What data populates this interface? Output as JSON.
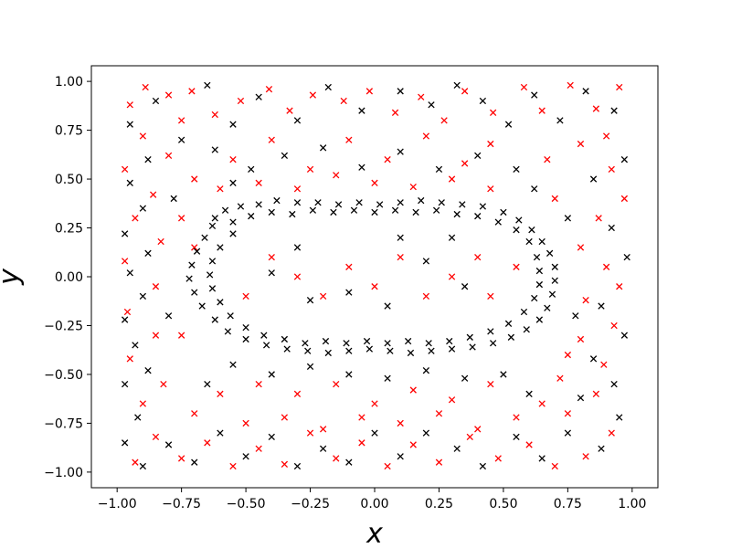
{
  "chart_data": {
    "type": "scatter",
    "title": "",
    "xlabel": "x",
    "ylabel": "y",
    "xlim": [
      -1.1,
      1.1
    ],
    "ylim": [
      -1.08,
      1.08
    ],
    "xticks": [
      -1.0,
      -0.75,
      -0.5,
      -0.25,
      0.0,
      0.25,
      0.5,
      0.75,
      1.0
    ],
    "xtick_labels": [
      "−1.00",
      "−0.75",
      "−0.50",
      "−0.25",
      "0.00",
      "0.25",
      "0.50",
      "0.75",
      "1.00"
    ],
    "yticks": [
      1.0,
      0.75,
      0.5,
      0.25,
      0.0,
      -0.25,
      -0.5,
      -0.75,
      -1.0
    ],
    "ytick_labels": [
      "1.00",
      "0.75",
      "0.50",
      "0.25",
      "0.00",
      "−0.25",
      "−0.50",
      "−0.75",
      "−1.00"
    ],
    "grid": false,
    "marker": "x",
    "series": [
      {
        "color": "#ff0000",
        "points": [
          [
            -0.95,
            0.88
          ],
          [
            -0.89,
            0.97
          ],
          [
            -0.8,
            0.93
          ],
          [
            -0.71,
            0.95
          ],
          [
            -0.62,
            0.83
          ],
          [
            -0.52,
            0.9
          ],
          [
            -0.41,
            0.96
          ],
          [
            -0.33,
            0.85
          ],
          [
            -0.24,
            0.93
          ],
          [
            -0.12,
            0.9
          ],
          [
            -0.02,
            0.95
          ],
          [
            0.08,
            0.84
          ],
          [
            0.18,
            0.92
          ],
          [
            0.27,
            0.8
          ],
          [
            0.35,
            0.95
          ],
          [
            0.46,
            0.84
          ],
          [
            0.58,
            0.97
          ],
          [
            0.65,
            0.85
          ],
          [
            0.76,
            0.98
          ],
          [
            0.86,
            0.86
          ],
          [
            0.95,
            0.97
          ],
          [
            0.9,
            0.72
          ],
          [
            0.8,
            0.68
          ],
          [
            0.67,
            0.6
          ],
          [
            0.92,
            0.55
          ],
          [
            0.97,
            0.4
          ],
          [
            0.87,
            0.3
          ],
          [
            0.8,
            0.15
          ],
          [
            0.9,
            0.05
          ],
          [
            0.95,
            -0.05
          ],
          [
            0.82,
            -0.12
          ],
          [
            0.93,
            -0.25
          ],
          [
            0.8,
            -0.32
          ],
          [
            0.89,
            -0.45
          ],
          [
            0.72,
            -0.52
          ],
          [
            0.86,
            -0.6
          ],
          [
            0.75,
            -0.7
          ],
          [
            0.92,
            -0.8
          ],
          [
            0.82,
            -0.92
          ],
          [
            0.7,
            -0.97
          ],
          [
            0.6,
            -0.86
          ],
          [
            0.48,
            -0.93
          ],
          [
            0.37,
            -0.82
          ],
          [
            0.25,
            -0.95
          ],
          [
            0.15,
            -0.86
          ],
          [
            0.05,
            -0.97
          ],
          [
            -0.05,
            -0.85
          ],
          [
            -0.15,
            -0.93
          ],
          [
            -0.25,
            -0.8
          ],
          [
            -0.35,
            -0.96
          ],
          [
            -0.45,
            -0.88
          ],
          [
            -0.55,
            -0.97
          ],
          [
            -0.65,
            -0.85
          ],
          [
            -0.75,
            -0.93
          ],
          [
            -0.85,
            -0.82
          ],
          [
            -0.93,
            -0.95
          ],
          [
            -0.9,
            -0.65
          ],
          [
            -0.82,
            -0.55
          ],
          [
            -0.95,
            -0.42
          ],
          [
            -0.85,
            -0.3
          ],
          [
            -0.96,
            -0.18
          ],
          [
            -0.85,
            -0.05
          ],
          [
            -0.97,
            0.08
          ],
          [
            -0.83,
            0.18
          ],
          [
            -0.93,
            0.3
          ],
          [
            -0.86,
            0.42
          ],
          [
            -0.97,
            0.55
          ],
          [
            -0.8,
            0.62
          ],
          [
            -0.9,
            0.72
          ],
          [
            -0.75,
            0.8
          ],
          [
            -0.7,
            0.5
          ],
          [
            -0.55,
            0.6
          ],
          [
            -0.4,
            0.7
          ],
          [
            -0.25,
            0.55
          ],
          [
            -0.1,
            0.7
          ],
          [
            0.05,
            0.6
          ],
          [
            0.2,
            0.72
          ],
          [
            0.35,
            0.58
          ],
          [
            0.45,
            0.68
          ],
          [
            -0.6,
            0.45
          ],
          [
            -0.45,
            0.48
          ],
          [
            -0.3,
            0.45
          ],
          [
            -0.15,
            0.52
          ],
          [
            0.0,
            0.48
          ],
          [
            0.15,
            0.46
          ],
          [
            0.3,
            0.5
          ],
          [
            0.45,
            0.45
          ],
          [
            -0.4,
            0.1
          ],
          [
            -0.3,
            0.0
          ],
          [
            -0.2,
            -0.1
          ],
          [
            -0.1,
            0.05
          ],
          [
            0.0,
            -0.05
          ],
          [
            0.1,
            0.1
          ],
          [
            0.2,
            -0.1
          ],
          [
            0.3,
            0.0
          ],
          [
            0.4,
            0.1
          ],
          [
            0.45,
            -0.1
          ],
          [
            -0.5,
            -0.1
          ],
          [
            0.55,
            0.05
          ],
          [
            -0.45,
            -0.55
          ],
          [
            -0.3,
            -0.6
          ],
          [
            -0.15,
            -0.55
          ],
          [
            0.0,
            -0.65
          ],
          [
            0.15,
            -0.58
          ],
          [
            0.3,
            -0.63
          ],
          [
            0.45,
            -0.55
          ],
          [
            -0.6,
            -0.6
          ],
          [
            -0.7,
            -0.7
          ],
          [
            -0.5,
            -0.75
          ],
          [
            -0.35,
            -0.72
          ],
          [
            -0.2,
            -0.78
          ],
          [
            -0.05,
            -0.72
          ],
          [
            0.1,
            -0.75
          ],
          [
            0.25,
            -0.7
          ],
          [
            0.4,
            -0.78
          ],
          [
            0.55,
            -0.72
          ],
          [
            0.65,
            -0.65
          ],
          [
            -0.75,
            -0.3
          ],
          [
            -0.7,
            0.15
          ],
          [
            -0.75,
            0.3
          ],
          [
            0.7,
            0.4
          ],
          [
            0.75,
            -0.4
          ]
        ]
      },
      {
        "color": "#000000",
        "points": [
          [
            -0.62,
            0.3
          ],
          [
            -0.58,
            0.34
          ],
          [
            -0.52,
            0.36
          ],
          [
            -0.45,
            0.37
          ],
          [
            -0.38,
            0.39
          ],
          [
            -0.3,
            0.38
          ],
          [
            -0.22,
            0.38
          ],
          [
            -0.14,
            0.37
          ],
          [
            -0.06,
            0.38
          ],
          [
            0.02,
            0.37
          ],
          [
            0.1,
            0.38
          ],
          [
            0.18,
            0.39
          ],
          [
            0.26,
            0.38
          ],
          [
            0.34,
            0.37
          ],
          [
            0.42,
            0.36
          ],
          [
            0.5,
            0.33
          ],
          [
            0.56,
            0.29
          ],
          [
            0.61,
            0.24
          ],
          [
            0.65,
            0.18
          ],
          [
            0.68,
            0.12
          ],
          [
            0.7,
            0.05
          ],
          [
            0.7,
            -0.02
          ],
          [
            0.69,
            -0.09
          ],
          [
            0.67,
            -0.16
          ],
          [
            0.64,
            -0.22
          ],
          [
            0.59,
            -0.27
          ],
          [
            0.53,
            -0.31
          ],
          [
            0.46,
            -0.34
          ],
          [
            0.38,
            -0.36
          ],
          [
            0.3,
            -0.37
          ],
          [
            0.22,
            -0.38
          ],
          [
            0.14,
            -0.39
          ],
          [
            0.06,
            -0.38
          ],
          [
            -0.02,
            -0.37
          ],
          [
            -0.1,
            -0.38
          ],
          [
            -0.18,
            -0.39
          ],
          [
            -0.26,
            -0.38
          ],
          [
            -0.34,
            -0.37
          ],
          [
            -0.42,
            -0.35
          ],
          [
            -0.5,
            -0.32
          ],
          [
            -0.57,
            -0.28
          ],
          [
            -0.62,
            -0.22
          ],
          [
            -0.67,
            -0.15
          ],
          [
            -0.7,
            -0.08
          ],
          [
            -0.72,
            -0.01
          ],
          [
            -0.71,
            0.06
          ],
          [
            -0.69,
            0.13
          ],
          [
            -0.66,
            0.2
          ],
          [
            -0.63,
            0.26
          ],
          [
            -0.55,
            0.28
          ],
          [
            -0.48,
            0.31
          ],
          [
            -0.4,
            0.33
          ],
          [
            -0.32,
            0.32
          ],
          [
            -0.24,
            0.34
          ],
          [
            -0.16,
            0.33
          ],
          [
            -0.08,
            0.34
          ],
          [
            0.0,
            0.33
          ],
          [
            0.08,
            0.34
          ],
          [
            0.16,
            0.33
          ],
          [
            0.24,
            0.34
          ],
          [
            0.32,
            0.32
          ],
          [
            0.4,
            0.31
          ],
          [
            0.48,
            0.28
          ],
          [
            0.55,
            0.24
          ],
          [
            0.6,
            0.18
          ],
          [
            0.63,
            0.1
          ],
          [
            0.64,
            0.03
          ],
          [
            0.64,
            -0.04
          ],
          [
            0.62,
            -0.11
          ],
          [
            0.58,
            -0.18
          ],
          [
            0.52,
            -0.24
          ],
          [
            0.45,
            -0.28
          ],
          [
            0.37,
            -0.31
          ],
          [
            0.29,
            -0.33
          ],
          [
            0.21,
            -0.34
          ],
          [
            0.13,
            -0.33
          ],
          [
            0.05,
            -0.34
          ],
          [
            -0.03,
            -0.33
          ],
          [
            -0.11,
            -0.34
          ],
          [
            -0.19,
            -0.33
          ],
          [
            -0.27,
            -0.34
          ],
          [
            -0.35,
            -0.32
          ],
          [
            -0.43,
            -0.3
          ],
          [
            -0.5,
            -0.26
          ],
          [
            -0.56,
            -0.2
          ],
          [
            -0.6,
            -0.13
          ],
          [
            -0.63,
            -0.06
          ],
          [
            -0.64,
            0.01
          ],
          [
            -0.63,
            0.08
          ],
          [
            -0.6,
            0.15
          ],
          [
            -0.55,
            0.22
          ],
          [
            -0.4,
            0.02
          ],
          [
            -0.25,
            -0.12
          ],
          [
            -0.1,
            -0.08
          ],
          [
            0.05,
            -0.15
          ],
          [
            0.2,
            0.08
          ],
          [
            0.35,
            -0.05
          ],
          [
            -0.3,
            0.15
          ],
          [
            0.1,
            0.2
          ],
          [
            0.3,
            0.2
          ],
          [
            -0.95,
            0.78
          ],
          [
            -0.85,
            0.9
          ],
          [
            -0.65,
            0.98
          ],
          [
            -0.55,
            0.78
          ],
          [
            -0.45,
            0.92
          ],
          [
            -0.3,
            0.8
          ],
          [
            -0.18,
            0.97
          ],
          [
            -0.05,
            0.85
          ],
          [
            0.1,
            0.95
          ],
          [
            0.22,
            0.88
          ],
          [
            0.32,
            0.98
          ],
          [
            0.42,
            0.9
          ],
          [
            0.52,
            0.78
          ],
          [
            0.62,
            0.93
          ],
          [
            0.72,
            0.8
          ],
          [
            0.82,
            0.95
          ],
          [
            0.93,
            0.85
          ],
          [
            0.97,
            0.6
          ],
          [
            0.85,
            0.5
          ],
          [
            0.92,
            0.25
          ],
          [
            0.98,
            0.1
          ],
          [
            0.88,
            -0.15
          ],
          [
            0.97,
            -0.3
          ],
          [
            0.85,
            -0.42
          ],
          [
            0.93,
            -0.55
          ],
          [
            0.8,
            -0.62
          ],
          [
            0.95,
            -0.72
          ],
          [
            0.88,
            -0.88
          ],
          [
            0.75,
            -0.8
          ],
          [
            0.65,
            -0.93
          ],
          [
            0.55,
            -0.82
          ],
          [
            0.42,
            -0.97
          ],
          [
            0.32,
            -0.88
          ],
          [
            0.2,
            -0.8
          ],
          [
            0.1,
            -0.92
          ],
          [
            0.0,
            -0.8
          ],
          [
            -0.1,
            -0.95
          ],
          [
            -0.2,
            -0.88
          ],
          [
            -0.3,
            -0.97
          ],
          [
            -0.4,
            -0.82
          ],
          [
            -0.5,
            -0.92
          ],
          [
            -0.6,
            -0.8
          ],
          [
            -0.7,
            -0.95
          ],
          [
            -0.8,
            -0.86
          ],
          [
            -0.9,
            -0.97
          ],
          [
            -0.97,
            -0.85
          ],
          [
            -0.92,
            -0.72
          ],
          [
            -0.97,
            -0.55
          ],
          [
            -0.88,
            -0.48
          ],
          [
            -0.93,
            -0.35
          ],
          [
            -0.97,
            -0.22
          ],
          [
            -0.9,
            -0.1
          ],
          [
            -0.95,
            0.02
          ],
          [
            -0.88,
            0.12
          ],
          [
            -0.97,
            0.22
          ],
          [
            -0.9,
            0.35
          ],
          [
            -0.95,
            0.48
          ],
          [
            -0.88,
            0.6
          ],
          [
            -0.75,
            0.7
          ],
          [
            -0.62,
            0.65
          ],
          [
            -0.48,
            0.55
          ],
          [
            -0.35,
            0.62
          ],
          [
            -0.2,
            0.66
          ],
          [
            -0.05,
            0.56
          ],
          [
            0.1,
            0.64
          ],
          [
            0.25,
            0.55
          ],
          [
            0.4,
            0.62
          ],
          [
            0.55,
            0.55
          ],
          [
            0.62,
            0.45
          ],
          [
            -0.55,
            0.48
          ],
          [
            0.5,
            -0.5
          ],
          [
            0.35,
            -0.52
          ],
          [
            0.2,
            -0.48
          ],
          [
            0.05,
            -0.52
          ],
          [
            -0.1,
            -0.5
          ],
          [
            -0.25,
            -0.46
          ],
          [
            -0.4,
            -0.5
          ],
          [
            -0.55,
            -0.45
          ],
          [
            0.6,
            -0.6
          ],
          [
            -0.65,
            -0.55
          ],
          [
            0.75,
            0.3
          ],
          [
            0.78,
            -0.2
          ],
          [
            -0.78,
            0.4
          ],
          [
            -0.8,
            -0.2
          ]
        ]
      }
    ]
  }
}
